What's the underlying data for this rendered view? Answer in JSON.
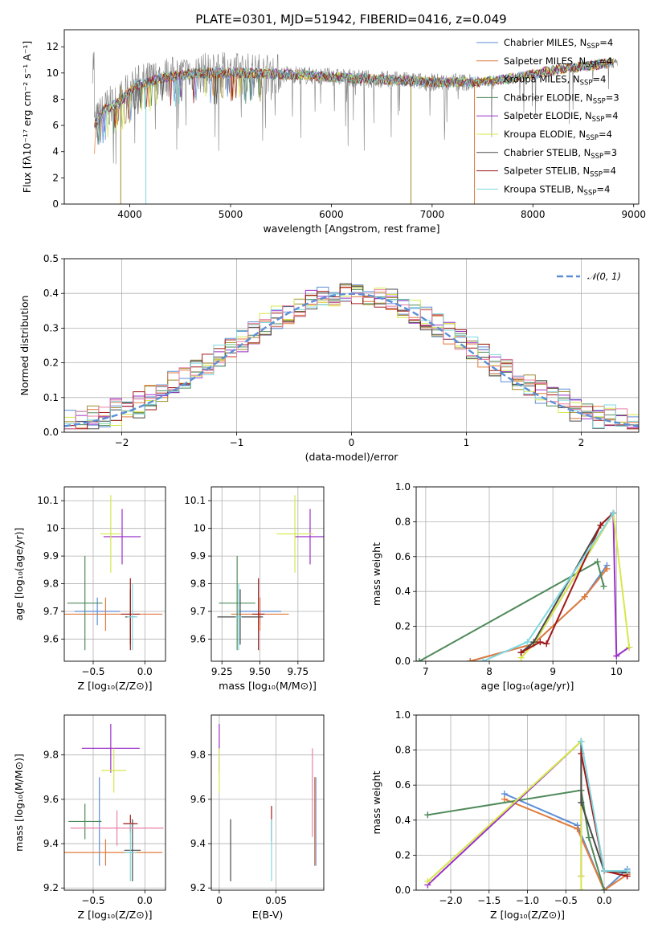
{
  "title": "PLATE=0301, MJD=51942, FIBERID=0416, z=0.049",
  "colors": {
    "Chabrier MILES": "#5b8ed6",
    "Salpeter MILES": "#e07b3c",
    "Kroupa MILES": "#a08a2a",
    "Chabrier ELODIE": "#4f8a5a",
    "Salpeter ELODIE": "#9b30c8",
    "Kroupa ELODIE": "#d6e84a",
    "Chabrier STELIB": "#4a4a4a",
    "Salpeter STELIB": "#a01818",
    "Kroupa STELIB": "#7fd8e0",
    "data": "#808080",
    "gaussian": "#5b8ed6",
    "pink": "#e880a8"
  },
  "legend_top": [
    {
      "name": "Chabrier MILES",
      "n": "4"
    },
    {
      "name": "Salpeter MILES",
      "n": "4"
    },
    {
      "name": "Kroupa MILES",
      "n": "4"
    },
    {
      "name": "Chabrier ELODIE",
      "n": "3"
    },
    {
      "name": "Salpeter ELODIE",
      "n": "4"
    },
    {
      "name": "Kroupa ELODIE",
      "n": "4"
    },
    {
      "name": "Chabrier STELIB",
      "n": "3"
    },
    {
      "name": "Salpeter STELIB",
      "n": "4"
    },
    {
      "name": "Kroupa STELIB",
      "n": "4"
    }
  ],
  "chart_data": [
    {
      "id": "spectrum",
      "type": "line",
      "xlabel": "wavelength [Angstrom, rest frame]",
      "ylabel": "Flux [fλ10⁻¹⁷ erg cm⁻² s⁻¹ A⁻¹]",
      "xlim": [
        3350,
        9050
      ],
      "ylim": [
        0,
        13.3
      ],
      "xticks": [
        4000,
        5000,
        6000,
        7000,
        8000,
        9000
      ],
      "yticks": [
        0,
        2,
        4,
        6,
        8,
        10,
        12
      ],
      "model_continuum": {
        "x": [
          3650,
          3750,
          3900,
          4050,
          4300,
          4700,
          5200,
          5600,
          6000,
          6500,
          7000,
          7400,
          7600,
          7800,
          8200,
          8600,
          8800
        ],
        "y": [
          6.0,
          7.2,
          7.8,
          9.0,
          9.6,
          10.0,
          10.0,
          9.9,
          9.7,
          9.5,
          9.3,
          9.3,
          9.4,
          9.6,
          10.2,
          10.6,
          10.8
        ]
      }
    },
    {
      "id": "residuals",
      "type": "step",
      "xlabel": "(data-model)/error",
      "ylabel": "Normed distribution",
      "xlim": [
        -2.5,
        2.5
      ],
      "ylim": [
        0,
        0.5
      ],
      "xticks": [
        -2,
        -1,
        0,
        1,
        2
      ],
      "yticks": [
        0.0,
        0.1,
        0.2,
        0.3,
        0.4,
        0.5
      ],
      "gaussian_label": "𝒩(0, 1)"
    },
    {
      "id": "age_vs_Z",
      "type": "errorbar",
      "xlabel": "Z [log₁₀(Z/Z⊙)]",
      "ylabel": "age  [log₁₀(age/yr)]",
      "xlim": [
        -0.78,
        0.2
      ],
      "ylim": [
        9.52,
        10.15
      ],
      "xticks": [
        -0.5,
        0.0
      ],
      "yticks": [
        9.6,
        9.7,
        9.8,
        9.9,
        10.0,
        10.1
      ],
      "points": [
        {
          "model": "Chabrier MILES",
          "x": -0.46,
          "xerr": 0.22,
          "y": 9.7,
          "yerr": 0.05
        },
        {
          "model": "Salpeter MILES",
          "x": -0.38,
          "xerr": 0.55,
          "y": 9.69,
          "yerr": 0.06
        },
        {
          "model": "Chabrier ELODIE",
          "x": -0.58,
          "xerr": 0.17,
          "y": 9.73,
          "yerr": 0.17
        },
        {
          "model": "Salpeter ELODIE",
          "x": -0.22,
          "xerr": 0.18,
          "y": 9.97,
          "yerr": 0.1
        },
        {
          "model": "Kroupa ELODIE",
          "x": -0.33,
          "xerr": 0.1,
          "y": 9.98,
          "yerr": 0.14
        },
        {
          "model": "Chabrier STELIB",
          "x": -0.14,
          "xerr": 0.05,
          "y": 9.68,
          "yerr": 0.1
        },
        {
          "model": "Salpeter STELIB",
          "x": -0.14,
          "xerr": 0.09,
          "y": 9.69,
          "yerr": 0.13
        },
        {
          "model": "Kroupa STELIB",
          "x": -0.12,
          "xerr": 0.05,
          "y": 9.68,
          "yerr": 0.12
        }
      ]
    },
    {
      "id": "age_vs_mass",
      "type": "errorbar",
      "xlabel": "mass [log₁₀(M/M⊙)]",
      "ylabel": "",
      "xlim": [
        9.18,
        9.92
      ],
      "ylim": [
        9.52,
        10.15
      ],
      "xticks": [
        9.25,
        9.5,
        9.75
      ],
      "yticks": [
        9.6,
        9.7,
        9.8,
        9.9,
        10.0,
        10.1
      ],
      "points": [
        {
          "model": "Chabrier MILES",
          "x": 9.5,
          "xerr": 0.14,
          "y": 9.7,
          "yerr": 0.05
        },
        {
          "model": "Salpeter MILES",
          "x": 9.5,
          "xerr": 0.19,
          "y": 9.69,
          "yerr": 0.06
        },
        {
          "model": "Chabrier ELODIE",
          "x": 9.35,
          "xerr": 0.12,
          "y": 9.73,
          "yerr": 0.17
        },
        {
          "model": "Salpeter ELODIE",
          "x": 9.83,
          "xerr": 0.1,
          "y": 9.97,
          "yerr": 0.1
        },
        {
          "model": "Kroupa ELODIE",
          "x": 9.73,
          "xerr": 0.12,
          "y": 9.98,
          "yerr": 0.14
        },
        {
          "model": "Chabrier STELIB",
          "x": 9.37,
          "xerr": 0.15,
          "y": 9.68,
          "yerr": 0.1
        },
        {
          "model": "Salpeter STELIB",
          "x": 9.49,
          "xerr": 0.04,
          "y": 9.69,
          "yerr": 0.13
        },
        {
          "model": "Kroupa STELIB",
          "x": 9.36,
          "xerr": 0.02,
          "y": 9.68,
          "yerr": 0.12
        }
      ]
    },
    {
      "id": "weight_vs_age",
      "type": "line",
      "xlabel": "age  [log₁₀(age/yr)]",
      "ylabel": "mass weight",
      "xlim": [
        6.85,
        10.35
      ],
      "ylim": [
        0,
        1.0
      ],
      "xticks": [
        7,
        8,
        9,
        10
      ],
      "yticks": [
        0.0,
        0.2,
        0.4,
        0.6,
        0.8,
        1.0
      ],
      "series": [
        {
          "model": "Chabrier MILES",
          "x": [
            7.7,
            8.7,
            9.5,
            9.85
          ],
          "y": [
            0.0,
            0.1,
            0.37,
            0.55
          ]
        },
        {
          "model": "Salpeter MILES",
          "x": [
            7.7,
            8.7,
            9.5,
            9.85
          ],
          "y": [
            0.0,
            0.1,
            0.37,
            0.53
          ]
        },
        {
          "model": "Chabrier ELODIE",
          "x": [
            6.9,
            9.7,
            9.8
          ],
          "y": [
            0.0,
            0.57,
            0.43
          ]
        },
        {
          "model": "Salpeter ELODIE",
          "x": [
            8.5,
            8.7,
            9.95,
            10.0,
            10.2
          ],
          "y": [
            0.05,
            0.1,
            0.85,
            0.03,
            0.08
          ]
        },
        {
          "model": "Kroupa ELODIE",
          "x": [
            8.5,
            8.7,
            9.95,
            10.2
          ],
          "y": [
            0.02,
            0.1,
            0.85,
            0.08
          ]
        },
        {
          "model": "Chabrier STELIB",
          "x": [
            8.5,
            8.7,
            9.75,
            9.95
          ],
          "y": [
            0.05,
            0.11,
            0.78,
            0.85
          ]
        },
        {
          "model": "Salpeter STELIB",
          "x": [
            8.5,
            8.8,
            8.9,
            9.75,
            9.95
          ],
          "y": [
            0.05,
            0.11,
            0.1,
            0.78,
            0.85
          ]
        },
        {
          "model": "Kroupa STELIB",
          "x": [
            7.9,
            8.6,
            9.95
          ],
          "y": [
            0.0,
            0.11,
            0.85
          ]
        }
      ]
    },
    {
      "id": "mass_vs_Z",
      "type": "errorbar",
      "xlabel": "Z [log₁₀(Z/Z⊙)]",
      "ylabel": "mass [log₁₀(M/M⊙)]",
      "xlim": [
        -0.78,
        0.2
      ],
      "ylim": [
        9.19,
        9.98
      ],
      "xticks": [
        -0.5,
        0.0
      ],
      "yticks": [
        9.2,
        9.4,
        9.6,
        9.8
      ],
      "points": [
        {
          "model": "Chabrier MILES",
          "x": -0.44,
          "xerr": 0.02,
          "y": 9.5,
          "yerr": 0.2
        },
        {
          "model": "Salpeter MILES",
          "x": -0.38,
          "xerr": 0.55,
          "y": 9.36,
          "yerr": 0.06
        },
        {
          "model": "Chabrier ELODIE",
          "x": -0.58,
          "xerr": 0.16,
          "y": 9.5,
          "yerr": 0.08
        },
        {
          "model": "Salpeter ELODIE",
          "x": -0.33,
          "xerr": 0.28,
          "y": 9.83,
          "yerr": 0.11
        },
        {
          "model": "Kroupa ELODIE",
          "x": -0.3,
          "xerr": 0.12,
          "y": 9.73,
          "yerr": 0.1
        },
        {
          "model": "Chabrier STELIB",
          "x": -0.12,
          "xerr": 0.08,
          "y": 9.37,
          "yerr": 0.14
        },
        {
          "model": "Salpeter STELIB",
          "x": -0.14,
          "xerr": 0.07,
          "y": 9.49,
          "yerr": 0.04
        },
        {
          "model": "Kroupa STELIB",
          "x": -0.14,
          "xerr": 0.06,
          "y": 9.36,
          "yerr": 0.13
        },
        {
          "model": "pink",
          "x": -0.27,
          "xerr": 0.45,
          "y": 9.47,
          "yerr": 0.08
        }
      ]
    },
    {
      "id": "mass_vs_ebv",
      "type": "errorbar",
      "xlabel": "E(B-V)",
      "ylabel": "",
      "xlim": [
        -0.007,
        0.092
      ],
      "ylim": [
        9.19,
        9.98
      ],
      "xticks": [
        0.0,
        0.05
      ],
      "yticks": [
        9.2,
        9.4,
        9.6,
        9.8
      ],
      "points": [
        {
          "model": "Salpeter ELODIE",
          "x": 0.0,
          "y": 9.83,
          "yerr": 0.11
        },
        {
          "model": "Kroupa ELODIE",
          "x": 0.0,
          "y": 9.73,
          "yerr": 0.1
        },
        {
          "model": "Chabrier STELIB",
          "x": 0.01,
          "y": 9.37,
          "yerr": 0.14
        },
        {
          "model": "Salpeter STELIB",
          "x": 0.046,
          "y": 9.49,
          "yerr": 0.08
        },
        {
          "model": "Kroupa STELIB",
          "x": 0.046,
          "y": 9.37,
          "yerr": 0.14
        },
        {
          "model": "pink",
          "x": 0.082,
          "y": 9.63,
          "yerr": 0.2
        },
        {
          "model": "Salpeter MILES",
          "x": 0.084,
          "y": 9.5,
          "yerr": 0.2
        },
        {
          "model": "Chabrier MILES",
          "x": 0.085,
          "y": 9.5,
          "yerr": 0.2
        }
      ]
    },
    {
      "id": "weight_vs_Z",
      "type": "line",
      "xlabel": "Z [log₁₀(Z/Z⊙)]",
      "ylabel": "mass weight",
      "xlim": [
        -2.45,
        0.45
      ],
      "ylim": [
        0,
        1.0
      ],
      "xticks": [
        -2.0,
        -1.5,
        -1.0,
        -0.5,
        0.0
      ],
      "yticks": [
        0.0,
        0.2,
        0.4,
        0.6,
        0.8,
        1.0
      ],
      "series": [
        {
          "model": "Chabrier MILES",
          "x": [
            -1.3,
            -0.35,
            0.0,
            0.3
          ],
          "y": [
            0.55,
            0.37,
            0.0,
            0.12
          ]
        },
        {
          "model": "Salpeter MILES",
          "x": [
            -1.3,
            -0.35,
            0.0,
            0.3
          ],
          "y": [
            0.52,
            0.35,
            0.0,
            0.09
          ]
        },
        {
          "model": "Chabrier ELODIE",
          "x": [
            -2.3,
            -0.3,
            -0.2,
            0.0
          ],
          "y": [
            0.43,
            0.57,
            0.3,
            0.0
          ]
        },
        {
          "model": "Salpeter ELODIE",
          "x": [
            -2.3,
            -0.3,
            -0.3
          ],
          "y": [
            0.03,
            0.85,
            0.08
          ]
        },
        {
          "model": "Kroupa ELODIE",
          "x": [
            -2.3,
            -0.3,
            -0.3,
            -0.3
          ],
          "y": [
            0.05,
            0.85,
            0.08,
            0.0
          ]
        },
        {
          "model": "Chabrier STELIB",
          "x": [
            -0.3,
            -0.3,
            0.0,
            0.3
          ],
          "y": [
            0.85,
            0.5,
            0.11,
            0.1
          ]
        },
        {
          "model": "Salpeter STELIB",
          "x": [
            -0.3,
            0.0,
            0.3
          ],
          "y": [
            0.78,
            0.11,
            0.08
          ]
        },
        {
          "model": "Kroupa STELIB",
          "x": [
            -0.3,
            0.0,
            0.3
          ],
          "y": [
            0.85,
            0.11,
            0.11
          ]
        }
      ]
    }
  ]
}
